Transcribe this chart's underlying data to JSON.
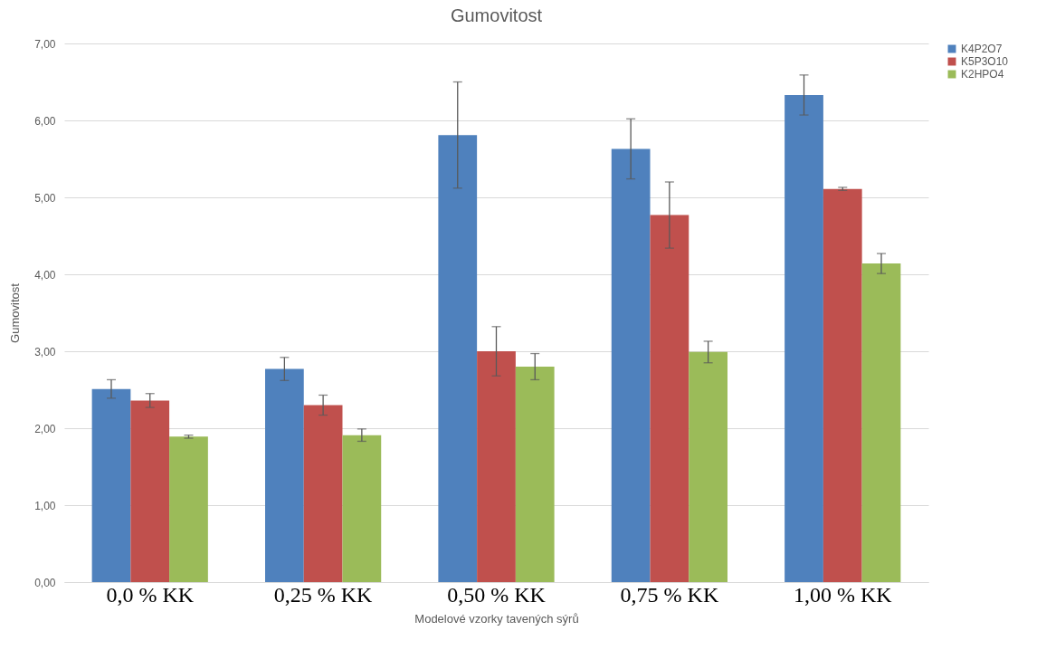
{
  "chart_data": {
    "type": "bar",
    "title": "Gumovitost",
    "xlabel": "Modelové vzorky tavených sýrů",
    "ylabel": "Gumovitost",
    "categories": [
      "0,0 % KK",
      "0,25 % KK",
      "0,50 % KK",
      "0,75 % KK",
      "1,00 % KK"
    ],
    "series": [
      {
        "name": "K4P2O7",
        "color": "#4f81bd",
        "values": [
          2.51,
          2.77,
          5.81,
          5.63,
          6.33
        ],
        "errors": [
          0.12,
          0.15,
          0.69,
          0.39,
          0.26
        ]
      },
      {
        "name": "K5P3O10",
        "color": "#c0504d",
        "values": [
          2.36,
          2.3,
          3.0,
          4.77,
          5.11
        ],
        "errors": [
          0.09,
          0.13,
          0.32,
          0.43,
          0.02
        ]
      },
      {
        "name": "K2HPO4",
        "color": "#9bbb59",
        "values": [
          1.89,
          1.91,
          2.8,
          2.99,
          4.14
        ],
        "errors": [
          0.02,
          0.08,
          0.17,
          0.14,
          0.13
        ]
      }
    ],
    "ylim": [
      0,
      7
    ],
    "yticks": [
      {
        "value": 0,
        "label": "0,00"
      },
      {
        "value": 1,
        "label": "1,00"
      },
      {
        "value": 2,
        "label": "2,00"
      },
      {
        "value": 3,
        "label": "3,00"
      },
      {
        "value": 4,
        "label": "4,00"
      },
      {
        "value": 5,
        "label": "5,00"
      },
      {
        "value": 6,
        "label": "6,00"
      },
      {
        "value": 7,
        "label": "7,00"
      }
    ],
    "grid": "y",
    "legend": "right"
  }
}
